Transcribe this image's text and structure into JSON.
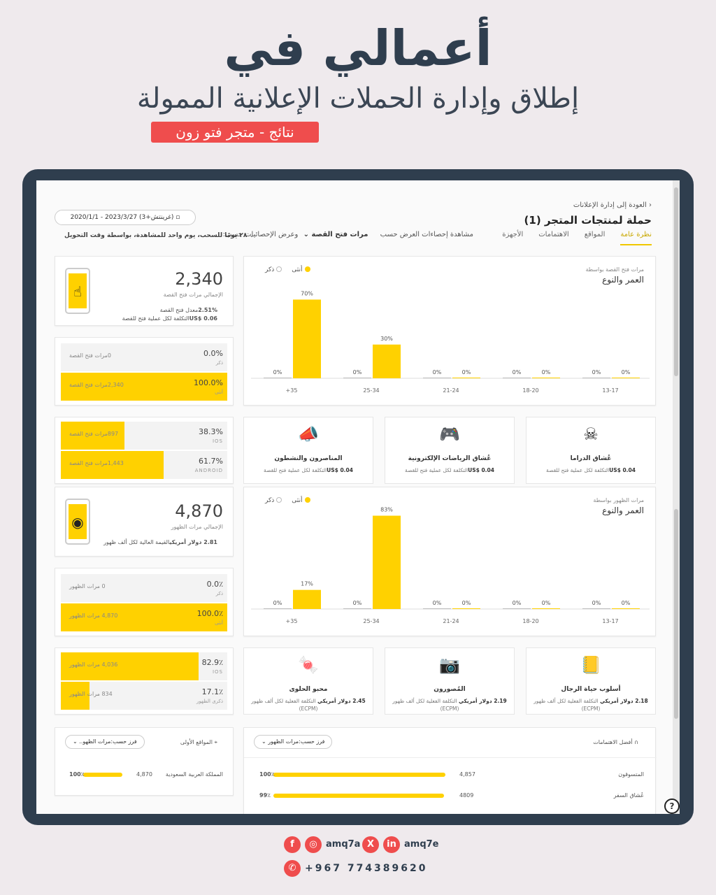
{
  "hero": {
    "brand_a": "أعمالي في",
    "subtitle": "إطلاق وإدارة الحملات الإعلانية الممولة",
    "tagline": "نتائج - متجر فتو زون"
  },
  "header": {
    "back": "العودة إلى إدارة الإعلانات",
    "title": "حملة لمنتجات المتجر (1)",
    "tabs": [
      "نظرة عامة",
      "المواقع",
      "الاهتمامات",
      "الأجهزة"
    ],
    "stats_by": "مشاهدة إحصاءات العرض حسب",
    "stats_metric": "مرات فتح القصة",
    "stats_show": "وعرض الإحصائيات حسب:",
    "date_range": "2020/1/1 - 2023/3/27 (غرينتش+3)",
    "filter": "٢٨ يومًا للسحب، يوم واحد للمشاهدة، بواسطة وقت التحويل"
  },
  "sec1": {
    "total": "2,340",
    "total_lbl": "الإجمالي مرات فتح القصة",
    "rate_val": "2.51%",
    "rate_lbl": "معدل فتح القصة",
    "cost_val": "US$ 0.06",
    "cost_lbl": "التكلفة لكل عملية فتح للقصة",
    "male_pct": "0.0%",
    "male_lbl": "ذكر",
    "male_in": "0مرات فتح القصة",
    "female_pct": "100.0%",
    "female_lbl": "أنثى",
    "female_in": "2,340مرات فتح القصة",
    "ios_pct": "38.3%",
    "ios_lbl": "IOS",
    "ios_in": "897مرات فتح القصة",
    "ios_fill": 0.383,
    "and_pct": "61.7%",
    "and_lbl": "ANDROID",
    "and_in": "1,443مرات فتح القصة",
    "and_fill": 0.617,
    "chart_title": "مرات فتح القصة بواسطة",
    "chart_sub": "العمر والنوع",
    "interests": [
      {
        "name": "عُشاق الدراما",
        "cost": "US$ 0.04",
        "lbl": "التكلفة لكل عملية فتح للقصة",
        "icon": "mask-icon",
        "glyph": "☠"
      },
      {
        "name": "عُشاق الرياضات الإلكترونية",
        "cost": "US$ 0.04",
        "lbl": "التكلفة لكل عملية فتح للقصة",
        "icon": "gamepad-icon",
        "glyph": "🎮"
      },
      {
        "name": "المناصرون والنشطون",
        "cost": "US$ 0.04",
        "lbl": "التكلفة لكل عملية فتح للقصة",
        "icon": "megaphone-icon",
        "glyph": "📣"
      }
    ]
  },
  "sec2": {
    "total": "4,870",
    "total_lbl": "الإجمالي مرات الظهور",
    "cpm_val": "2.81 دولار أمريكي",
    "cpm_lbl": "القيمة العالية لكل ألف ظهور",
    "male_pct": "0.0٪",
    "male_lbl": "ذكر",
    "male_in": "0 مرات الظهور",
    "female_pct": "100.0٪",
    "female_lbl": "أنثى",
    "female_in": "4,870 مرات الظهور",
    "ios_pct": "82.9٪",
    "ios_lbl": "IOS",
    "ios_in": "4,036 مرات الظهور",
    "ios_fill": 0.829,
    "and_pct": "17.1٪",
    "and_lbl": "ذكرى الظهور",
    "and_in": "834 مرات الظهور",
    "and_fill": 0.171,
    "chart_title": "مرات الظهور بواسطة",
    "chart_sub": "العمر والنوع",
    "interests": [
      {
        "name": "أسلوب حياة الرجال",
        "cost": "2.18 دولار أمريكي",
        "lbl": "التكلفة الفعلية لكل ألف ظهور (ECPM)",
        "icon": "book-icon",
        "glyph": "📒"
      },
      {
        "name": "المُصورون",
        "cost": "2.19 دولار أمريكي",
        "lbl": "التكلفة الفعلية لكل ألف ظهور (ECPM)",
        "icon": "camera-icon",
        "glyph": "📷"
      },
      {
        "name": "محبو الحلوى",
        "cost": "2.45 دولار أمريكي",
        "lbl": "التكلفة الفعلية لكل ألف ظهور (ECPM)",
        "icon": "candy-icon",
        "glyph": "🍬"
      }
    ]
  },
  "bottom": {
    "top_locations": "المواقع الأولى",
    "sort1": "فرز حسب:مرات الظهو..",
    "country": "المملكة العربية السعودية",
    "country_val": "4,870",
    "country_pct": "100٪",
    "country_fill": 1.0,
    "top_interests": "أفضل الاهتمامات",
    "sort2": "فرز حسب:مرات الظهور",
    "rows": [
      {
        "name": "المتسوقون",
        "val": "4,857",
        "pct": "100٪",
        "fill": 1.0
      },
      {
        "name": "عُشاق السفر",
        "val": "4809",
        "pct": "99٪",
        "fill": 0.99
      }
    ]
  },
  "legend": {
    "female": "أنثى",
    "male": "ذكر",
    "female_color": "#ffd100",
    "male_color": "#bdbdbd"
  },
  "chart_data": [
    {
      "type": "bar",
      "title": "مرات فتح القصة بواسطة",
      "subtitle": "العمر والنوع",
      "categories": [
        "+35",
        "25-34",
        "21-24",
        "18-20",
        "13-17"
      ],
      "series": [
        {
          "name": "أنثى",
          "values": [
            70,
            30,
            0,
            0,
            0
          ]
        },
        {
          "name": "ذكر",
          "values": [
            0,
            0,
            0,
            0,
            0
          ]
        }
      ],
      "labels": [
        [
          "70%",
          "0%"
        ],
        [
          "30%",
          "0%"
        ],
        [
          "0%",
          "0%"
        ],
        [
          "0%",
          "0%"
        ],
        [
          "0%",
          "0%"
        ]
      ],
      "ylim": [
        0,
        100
      ]
    },
    {
      "type": "bar",
      "title": "مرات الظهور بواسطة",
      "subtitle": "العمر والنوع",
      "categories": [
        "+35",
        "25-34",
        "21-24",
        "18-20",
        "13-17"
      ],
      "series": [
        {
          "name": "أنثى",
          "values": [
            17,
            83,
            0,
            0,
            0
          ]
        },
        {
          "name": "ذكر",
          "values": [
            0,
            0,
            0,
            0,
            0
          ]
        }
      ],
      "labels": [
        [
          "17%",
          "0%"
        ],
        [
          "83%",
          "0%"
        ],
        [
          "0%",
          "0%"
        ],
        [
          "0%",
          "0%"
        ],
        [
          "0%",
          "0%"
        ]
      ],
      "ylim": [
        0,
        100
      ]
    }
  ],
  "footer": {
    "handle1": "amq7a",
    "handle2": "amq7e",
    "phone": "+967 774389620",
    "icons": [
      "facebook-icon",
      "instagram-icon",
      "x-icon",
      "linkedin-icon",
      "whatsapp-icon"
    ]
  }
}
